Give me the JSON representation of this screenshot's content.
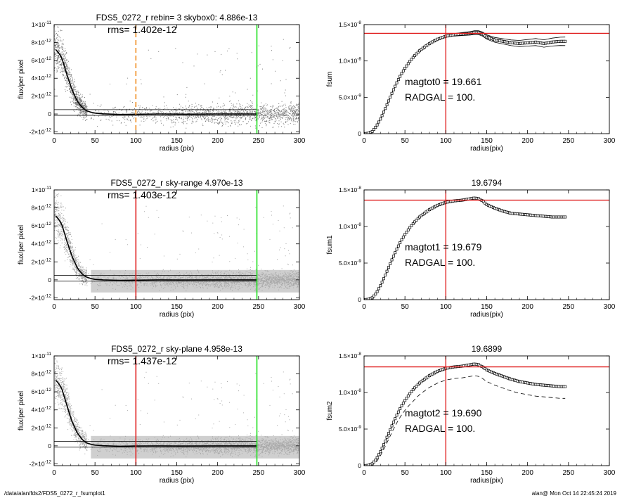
{
  "footer": {
    "path": "/data/alan/fds2/FDS5_0272_r_fsumplot1",
    "stamp": "alan@  Mon Oct 14 22:45:24 2019"
  },
  "colors": {
    "axis": "#000000",
    "scatter": "#7a7a7a",
    "scatter_dense": "#a8a8a8",
    "red": "#e02020",
    "green": "#20e020",
    "orange": "#f08c1e"
  },
  "chart_data": [
    {
      "id": "profile-1",
      "type": "scatter",
      "title": "FDS5_0272_r rebin= 3    skybox0:  4.886e-13",
      "annotation": "rms= 1.402e-12",
      "xlabel": "radius (pix)",
      "ylabel": "flux/per pixel",
      "xlim": [
        0,
        300
      ],
      "ylim": [
        -2.2e-12,
        1e-11
      ],
      "xticks": [
        "0",
        "50",
        "100",
        "150",
        "200",
        "250",
        "300"
      ],
      "yticks": [
        {
          "value": 1e-11,
          "mant": "1×10",
          "exp": "-11"
        },
        {
          "value": 8e-12,
          "mant": "8×10",
          "exp": "-12"
        },
        {
          "value": 6e-12,
          "mant": "6×10",
          "exp": "-12"
        },
        {
          "value": 4e-12,
          "mant": "4×10",
          "exp": "-12"
        },
        {
          "value": 2e-12,
          "mant": "2×10",
          "exp": "-12"
        },
        {
          "value": 0,
          "mant": "0",
          "exp": ""
        },
        {
          "value": -2e-12,
          "mant": "-2×10",
          "exp": "-12"
        }
      ],
      "vlines": [
        {
          "x": 100,
          "color": "#f08c1e",
          "dash": true
        },
        {
          "x": 248,
          "color": "#20e020",
          "dash": false
        }
      ],
      "hlines": [
        4.886e-13,
        -1.5e-13
      ],
      "scatter_style": "sparse",
      "profile": [
        [
          2,
          7.2e-12
        ],
        [
          5,
          6.9e-12
        ],
        [
          8,
          6.5e-12
        ],
        [
          10,
          6.1e-12
        ],
        [
          13,
          5.2e-12
        ],
        [
          16,
          4.3e-12
        ],
        [
          19,
          3.5e-12
        ],
        [
          22,
          2.7e-12
        ],
        [
          25,
          2.1e-12
        ],
        [
          28,
          1.5e-12
        ],
        [
          31,
          1.1e-12
        ],
        [
          34,
          8e-13
        ],
        [
          37,
          5.5e-13
        ],
        [
          40,
          3.5e-13
        ],
        [
          45,
          2e-13
        ],
        [
          50,
          1e-13
        ],
        [
          60,
          2e-14
        ],
        [
          80,
          -5e-14
        ],
        [
          100,
          -3e-14
        ],
        [
          130,
          0
        ],
        [
          160,
          -2e-14
        ],
        [
          200,
          0
        ],
        [
          248,
          0
        ]
      ]
    },
    {
      "id": "fsum-1",
      "type": "line",
      "title": "",
      "annotation_lines": [
        "magtot0 =  19.661",
        "RADGAL =    100."
      ],
      "xlabel": "radius(pix)",
      "ylabel": "fsum",
      "xlim": [
        0,
        300
      ],
      "ylim": [
        0,
        1.5e-08
      ],
      "xticks": [
        "0",
        "50",
        "100",
        "150",
        "200",
        "250",
        "300"
      ],
      "yticks": [
        {
          "value": 1.5e-08,
          "mant": "1.5×10",
          "exp": "-8"
        },
        {
          "value": 1e-08,
          "mant": "1.0×10",
          "exp": "-8"
        },
        {
          "value": 5e-09,
          "mant": "5.0×10",
          "exp": "-9"
        },
        {
          "value": 0,
          "mant": "0",
          "exp": ""
        }
      ],
      "hline": 1.38e-08,
      "vline": 100,
      "band": "solid",
      "band_offset": 6e-10,
      "curve": [
        [
          0,
          0
        ],
        [
          5,
          5e-11
        ],
        [
          10,
          3e-10
        ],
        [
          15,
          1e-09
        ],
        [
          20,
          2e-09
        ],
        [
          25,
          3.2e-09
        ],
        [
          30,
          4.5e-09
        ],
        [
          35,
          5.8e-09
        ],
        [
          40,
          7e-09
        ],
        [
          45,
          8.1e-09
        ],
        [
          50,
          9e-09
        ],
        [
          55,
          9.8e-09
        ],
        [
          60,
          1.05e-08
        ],
        [
          65,
          1.11e-08
        ],
        [
          70,
          1.16e-08
        ],
        [
          75,
          1.2e-08
        ],
        [
          80,
          1.24e-08
        ],
        [
          85,
          1.27e-08
        ],
        [
          90,
          1.3e-08
        ],
        [
          95,
          1.32e-08
        ],
        [
          100,
          1.34e-08
        ],
        [
          110,
          1.36e-08
        ],
        [
          120,
          1.37e-08
        ],
        [
          130,
          1.38e-08
        ],
        [
          135,
          1.39e-08
        ],
        [
          140,
          1.39e-08
        ],
        [
          145,
          1.37e-08
        ],
        [
          150,
          1.33e-08
        ],
        [
          160,
          1.29e-08
        ],
        [
          170,
          1.27e-08
        ],
        [
          180,
          1.25e-08
        ],
        [
          190,
          1.24e-08
        ],
        [
          200,
          1.25e-08
        ],
        [
          210,
          1.26e-08
        ],
        [
          220,
          1.24e-08
        ],
        [
          230,
          1.26e-08
        ],
        [
          240,
          1.27e-08
        ],
        [
          246,
          1.27e-08
        ]
      ]
    },
    {
      "id": "profile-2",
      "type": "scatter",
      "title": "FDS5_0272_r sky-range  4.970e-13",
      "annotation": "rms= 1.403e-12",
      "xlabel": "radius (pix)",
      "ylabel": "flux/per pixel",
      "xlim": [
        0,
        300
      ],
      "ylim": [
        -2.2e-12,
        1e-11
      ],
      "xticks": [
        "0",
        "50",
        "100",
        "150",
        "200",
        "250",
        "300"
      ],
      "yticks": [
        {
          "value": 1e-11,
          "mant": "1×10",
          "exp": "-11"
        },
        {
          "value": 8e-12,
          "mant": "8×10",
          "exp": "-12"
        },
        {
          "value": 6e-12,
          "mant": "6×10",
          "exp": "-12"
        },
        {
          "value": 4e-12,
          "mant": "4×10",
          "exp": "-12"
        },
        {
          "value": 2e-12,
          "mant": "2×10",
          "exp": "-12"
        },
        {
          "value": 0,
          "mant": "0",
          "exp": ""
        },
        {
          "value": -2e-12,
          "mant": "-2×10",
          "exp": "-12"
        }
      ],
      "vlines": [
        {
          "x": 100,
          "color": "#e02020",
          "dash": false
        },
        {
          "x": 248,
          "color": "#20e020",
          "dash": false
        }
      ],
      "hlines": [
        4.97e-13,
        -1.5e-13
      ],
      "scatter_style": "dense",
      "profile": [
        [
          2,
          7.1e-12
        ],
        [
          5,
          6.8e-12
        ],
        [
          8,
          6.4e-12
        ],
        [
          10,
          6e-12
        ],
        [
          13,
          5.1e-12
        ],
        [
          16,
          4.2e-12
        ],
        [
          19,
          3.4e-12
        ],
        [
          22,
          2.6e-12
        ],
        [
          25,
          2e-12
        ],
        [
          28,
          1.4e-12
        ],
        [
          31,
          1e-12
        ],
        [
          34,
          7e-13
        ],
        [
          37,
          4.5e-13
        ],
        [
          40,
          3e-13
        ],
        [
          45,
          1.5e-13
        ],
        [
          50,
          5e-14
        ],
        [
          60,
          0
        ],
        [
          80,
          -5e-14
        ],
        [
          100,
          -3e-14
        ],
        [
          130,
          0
        ],
        [
          160,
          -2e-14
        ],
        [
          200,
          0
        ],
        [
          248,
          0
        ]
      ]
    },
    {
      "id": "fsum-2",
      "type": "line",
      "title": "19.6794",
      "annotation_lines": [
        "magtot1 =  19.679",
        "RADGAL =    100."
      ],
      "xlabel": "radius(pix)",
      "ylabel": "fsum1",
      "xlim": [
        0,
        300
      ],
      "ylim": [
        0,
        1.5e-08
      ],
      "xticks": [
        "0",
        "50",
        "100",
        "150",
        "200",
        "250",
        "300"
      ],
      "yticks": [
        {
          "value": 1.5e-08,
          "mant": "1.5×10",
          "exp": "-8"
        },
        {
          "value": 1e-08,
          "mant": "1.0×10",
          "exp": "-8"
        },
        {
          "value": 5e-09,
          "mant": "5.0×10",
          "exp": "-9"
        },
        {
          "value": 0,
          "mant": "0",
          "exp": ""
        }
      ],
      "hline": 1.36e-08,
      "vline": 100,
      "band": "none",
      "band_offset": 0,
      "curve": [
        [
          0,
          0
        ],
        [
          5,
          4e-11
        ],
        [
          10,
          2.5e-10
        ],
        [
          15,
          9e-10
        ],
        [
          20,
          1.9e-09
        ],
        [
          25,
          3.1e-09
        ],
        [
          30,
          4.4e-09
        ],
        [
          35,
          5.7e-09
        ],
        [
          40,
          6.9e-09
        ],
        [
          45,
          8e-09
        ],
        [
          50,
          8.9e-09
        ],
        [
          55,
          9.7e-09
        ],
        [
          60,
          1.04e-08
        ],
        [
          65,
          1.1e-08
        ],
        [
          70,
          1.15e-08
        ],
        [
          75,
          1.19e-08
        ],
        [
          80,
          1.23e-08
        ],
        [
          85,
          1.26e-08
        ],
        [
          90,
          1.29e-08
        ],
        [
          95,
          1.31e-08
        ],
        [
          100,
          1.33e-08
        ],
        [
          110,
          1.35e-08
        ],
        [
          120,
          1.36e-08
        ],
        [
          130,
          1.38e-08
        ],
        [
          135,
          1.39e-08
        ],
        [
          140,
          1.38e-08
        ],
        [
          145,
          1.35e-08
        ],
        [
          150,
          1.3e-08
        ],
        [
          160,
          1.25e-08
        ],
        [
          170,
          1.21e-08
        ],
        [
          180,
          1.18e-08
        ],
        [
          190,
          1.17e-08
        ],
        [
          200,
          1.16e-08
        ],
        [
          210,
          1.15e-08
        ],
        [
          220,
          1.14e-08
        ],
        [
          230,
          1.13e-08
        ],
        [
          240,
          1.13e-08
        ],
        [
          246,
          1.13e-08
        ]
      ]
    },
    {
      "id": "profile-3",
      "type": "scatter",
      "title": "FDS5_0272_r sky-plane  4.958e-13",
      "annotation": "rms= 1.437e-12",
      "xlabel": "radius (pix)",
      "ylabel": "flux/per pixel",
      "xlim": [
        0,
        300
      ],
      "ylim": [
        -2.2e-12,
        1e-11
      ],
      "xticks": [
        "0",
        "50",
        "100",
        "150",
        "200",
        "250",
        "300"
      ],
      "yticks": [
        {
          "value": 1e-11,
          "mant": "1×10",
          "exp": "-11"
        },
        {
          "value": 8e-12,
          "mant": "8×10",
          "exp": "-12"
        },
        {
          "value": 6e-12,
          "mant": "6×10",
          "exp": "-12"
        },
        {
          "value": 4e-12,
          "mant": "4×10",
          "exp": "-12"
        },
        {
          "value": 2e-12,
          "mant": "2×10",
          "exp": "-12"
        },
        {
          "value": 0,
          "mant": "0",
          "exp": ""
        },
        {
          "value": -2e-12,
          "mant": "-2×10",
          "exp": "-12"
        }
      ],
      "vlines": [
        {
          "x": 100,
          "color": "#e02020",
          "dash": false
        },
        {
          "x": 248,
          "color": "#20e020",
          "dash": false
        }
      ],
      "hlines": [
        4.958e-13,
        -1.5e-13
      ],
      "scatter_style": "dense",
      "profile": [
        [
          2,
          7.3e-12
        ],
        [
          5,
          7e-12
        ],
        [
          8,
          6.6e-12
        ],
        [
          10,
          6.2e-12
        ],
        [
          13,
          5.3e-12
        ],
        [
          16,
          4.4e-12
        ],
        [
          19,
          3.5e-12
        ],
        [
          22,
          2.7e-12
        ],
        [
          25,
          2.1e-12
        ],
        [
          28,
          1.5e-12
        ],
        [
          31,
          1.1e-12
        ],
        [
          34,
          7.5e-13
        ],
        [
          37,
          5e-13
        ],
        [
          40,
          3.2e-13
        ],
        [
          45,
          1.8e-13
        ],
        [
          50,
          8e-14
        ],
        [
          60,
          1e-14
        ],
        [
          80,
          -4e-14
        ],
        [
          100,
          -2e-14
        ],
        [
          130,
          0
        ],
        [
          160,
          -2e-14
        ],
        [
          200,
          0
        ],
        [
          248,
          0
        ]
      ]
    },
    {
      "id": "fsum-3",
      "type": "line",
      "title": "19.6899",
      "annotation_lines": [
        "magtot2 =  19.690",
        "RADGAL =    100."
      ],
      "xlabel": "radius(pix)",
      "ylabel": "fsum2",
      "xlim": [
        0,
        300
      ],
      "ylim": [
        0,
        1.5e-08
      ],
      "xticks": [
        "0",
        "50",
        "100",
        "150",
        "200",
        "250",
        "300"
      ],
      "yticks": [
        {
          "value": 1.5e-08,
          "mant": "1.5×10",
          "exp": "-8"
        },
        {
          "value": 1e-08,
          "mant": "1.0×10",
          "exp": "-8"
        },
        {
          "value": 5e-09,
          "mant": "5.0×10",
          "exp": "-9"
        },
        {
          "value": 0,
          "mant": "0",
          "exp": ""
        }
      ],
      "hline": 1.35e-08,
      "vline": 100,
      "band": "dashed-below",
      "band_offset": 1.6e-09,
      "curve": [
        [
          0,
          0
        ],
        [
          5,
          4e-11
        ],
        [
          10,
          2.5e-10
        ],
        [
          15,
          9e-10
        ],
        [
          20,
          1.9e-09
        ],
        [
          25,
          3.1e-09
        ],
        [
          30,
          4.4e-09
        ],
        [
          35,
          5.7e-09
        ],
        [
          40,
          6.9e-09
        ],
        [
          45,
          8e-09
        ],
        [
          50,
          8.9e-09
        ],
        [
          55,
          9.7e-09
        ],
        [
          60,
          1.04e-08
        ],
        [
          65,
          1.1e-08
        ],
        [
          70,
          1.15e-08
        ],
        [
          75,
          1.19e-08
        ],
        [
          80,
          1.23e-08
        ],
        [
          85,
          1.26e-08
        ],
        [
          90,
          1.29e-08
        ],
        [
          95,
          1.31e-08
        ],
        [
          100,
          1.33e-08
        ],
        [
          110,
          1.35e-08
        ],
        [
          120,
          1.36e-08
        ],
        [
          130,
          1.38e-08
        ],
        [
          135,
          1.39e-08
        ],
        [
          140,
          1.38e-08
        ],
        [
          145,
          1.35e-08
        ],
        [
          150,
          1.31e-08
        ],
        [
          160,
          1.26e-08
        ],
        [
          170,
          1.22e-08
        ],
        [
          180,
          1.18e-08
        ],
        [
          190,
          1.15e-08
        ],
        [
          200,
          1.13e-08
        ],
        [
          210,
          1.11e-08
        ],
        [
          220,
          1.1e-08
        ],
        [
          230,
          1.09e-08
        ],
        [
          240,
          1.08e-08
        ],
        [
          246,
          1.08e-08
        ]
      ]
    }
  ]
}
